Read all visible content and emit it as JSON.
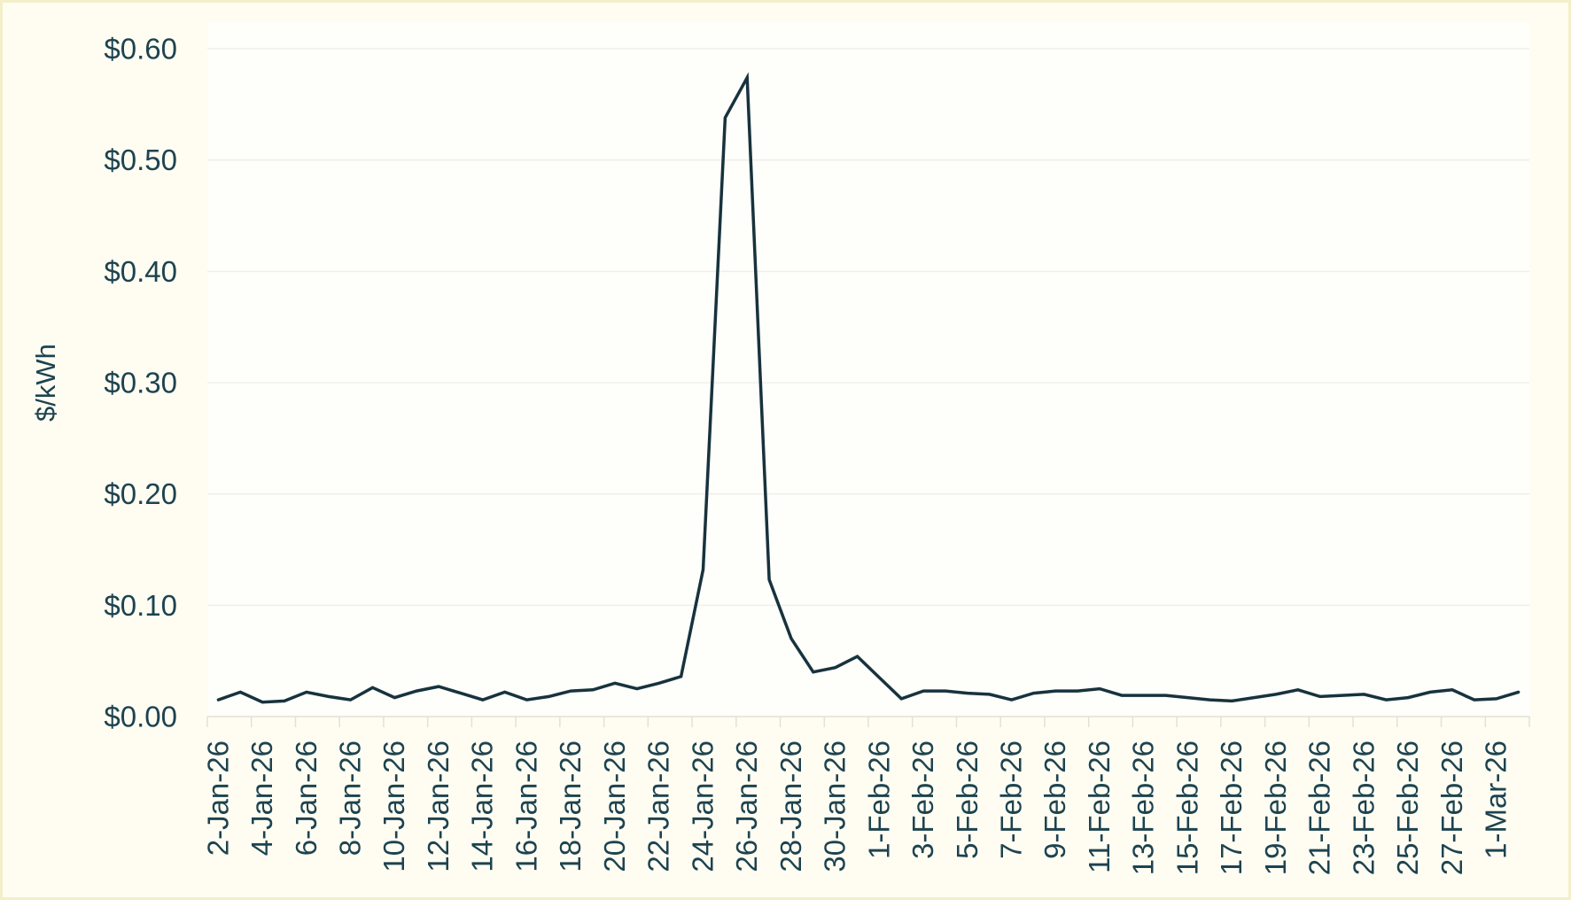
{
  "chart_data": {
    "type": "line",
    "title": "",
    "xlabel": "",
    "ylabel": "$/kWh",
    "legend": "none",
    "grid": "horizontal",
    "ylim": [
      0,
      0.6
    ],
    "ytick_labels": [
      "$0.00",
      "$0.10",
      "$0.20",
      "$0.30",
      "$0.40",
      "$0.50",
      "$0.60"
    ],
    "ytick_values": [
      0.0,
      0.1,
      0.2,
      0.3,
      0.4,
      0.5,
      0.6
    ],
    "x_label_every": 2,
    "x": [
      "2-Jan-26",
      "3-Jan-26",
      "4-Jan-26",
      "5-Jan-26",
      "6-Jan-26",
      "7-Jan-26",
      "8-Jan-26",
      "9-Jan-26",
      "10-Jan-26",
      "11-Jan-26",
      "12-Jan-26",
      "13-Jan-26",
      "14-Jan-26",
      "15-Jan-26",
      "16-Jan-26",
      "17-Jan-26",
      "18-Jan-26",
      "19-Jan-26",
      "20-Jan-26",
      "21-Jan-26",
      "22-Jan-26",
      "23-Jan-26",
      "24-Jan-26",
      "25-Jan-26",
      "26-Jan-26",
      "27-Jan-26",
      "28-Jan-26",
      "29-Jan-26",
      "30-Jan-26",
      "31-Jan-26",
      "1-Feb-26",
      "2-Feb-26",
      "3-Feb-26",
      "4-Feb-26",
      "5-Feb-26",
      "6-Feb-26",
      "7-Feb-26",
      "8-Feb-26",
      "9-Feb-26",
      "10-Feb-26",
      "11-Feb-26",
      "12-Feb-26",
      "13-Feb-26",
      "14-Feb-26",
      "15-Feb-26",
      "16-Feb-26",
      "17-Feb-26",
      "18-Feb-26",
      "19-Feb-26",
      "20-Feb-26",
      "21-Feb-26",
      "22-Feb-26",
      "23-Feb-26",
      "24-Feb-26",
      "25-Feb-26",
      "26-Feb-26",
      "27-Feb-26",
      "28-Feb-26",
      "1-Mar-26",
      "2-Mar-26"
    ],
    "values": [
      0.015,
      0.022,
      0.013,
      0.014,
      0.022,
      0.018,
      0.015,
      0.026,
      0.017,
      0.023,
      0.027,
      0.021,
      0.015,
      0.022,
      0.015,
      0.018,
      0.023,
      0.024,
      0.03,
      0.025,
      0.03,
      0.036,
      0.132,
      0.538,
      0.574,
      0.123,
      0.07,
      0.04,
      0.044,
      0.054,
      0.035,
      0.016,
      0.023,
      0.023,
      0.021,
      0.02,
      0.015,
      0.021,
      0.023,
      0.023,
      0.025,
      0.019,
      0.019,
      0.019,
      0.017,
      0.015,
      0.014,
      0.017,
      0.02,
      0.024,
      0.018,
      0.019,
      0.02,
      0.015,
      0.017,
      0.022,
      0.024,
      0.015,
      0.016,
      0.022
    ]
  },
  "colors": {
    "series_line": "#17333d",
    "axis_text": "#1d4350",
    "gridline": "#f0efe9",
    "axis_line": "#e3e1d6",
    "page_background": "#fffdf2",
    "plot_background": "#fefefb",
    "page_border": "#f3efc9"
  }
}
